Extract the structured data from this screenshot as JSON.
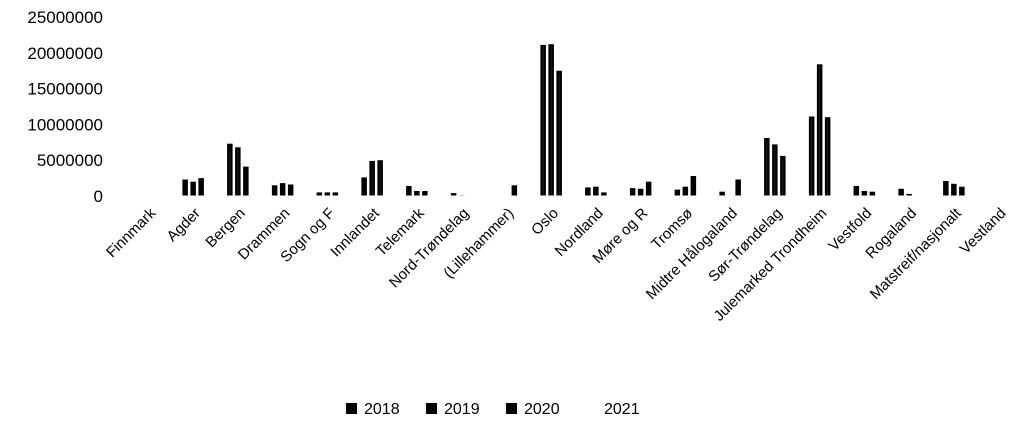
{
  "chart_data": {
    "type": "bar",
    "title": "",
    "xlabel": "",
    "ylabel": "",
    "ylim": [
      0,
      25000000
    ],
    "yticks": [
      0,
      5000000,
      10000000,
      15000000,
      20000000,
      25000000
    ],
    "ytick_labels": [
      "0",
      "5000000",
      "10000000",
      "15000000",
      "20000000",
      "25000000"
    ],
    "grid": false,
    "legend_position": "bottom",
    "categories": [
      "Finnmark",
      "Agder",
      "Bergen",
      "Drammen",
      "Sogn og F",
      "Innlandet",
      "Telemark",
      "Nord-Trøndelag",
      "(Lillehammer)",
      "Oslo",
      "Nordland",
      "Møre og R",
      "Tromsø",
      "Midtre Hålogaland",
      "Sør-Trøndelag",
      "Julemarked Trondheim",
      "Vestfold",
      "Rogaland",
      "Matstreif/nasjonalt",
      "Vestland"
    ],
    "series": [
      {
        "name": "2018",
        "color": "#000000",
        "values": [
          0,
          2300000,
          7300000,
          1500000,
          500000,
          2600000,
          1400000,
          400000,
          0,
          21100000,
          1200000,
          1100000,
          900000,
          600000,
          8100000,
          11100000,
          1400000,
          1000000,
          2100000,
          0
        ]
      },
      {
        "name": "2019",
        "color": "#000000",
        "values": [
          0,
          2000000,
          6800000,
          1800000,
          500000,
          4900000,
          700000,
          100000,
          0,
          21200000,
          1300000,
          1000000,
          1300000,
          0,
          7200000,
          18400000,
          700000,
          300000,
          1700000,
          0
        ]
      },
      {
        "name": "2020",
        "color": "#000000",
        "values": [
          0,
          2500000,
          4100000,
          1600000,
          500000,
          5000000,
          700000,
          0,
          1500000,
          17500000,
          500000,
          2000000,
          2800000,
          2300000,
          5600000,
          11000000,
          600000,
          0,
          1300000,
          0
        ]
      },
      {
        "name": "2021",
        "color": "#ffffff",
        "values": [
          0,
          0,
          0,
          0,
          0,
          0,
          0,
          0,
          0,
          0,
          0,
          0,
          0,
          0,
          0,
          0,
          0,
          0,
          0,
          0
        ]
      }
    ]
  }
}
